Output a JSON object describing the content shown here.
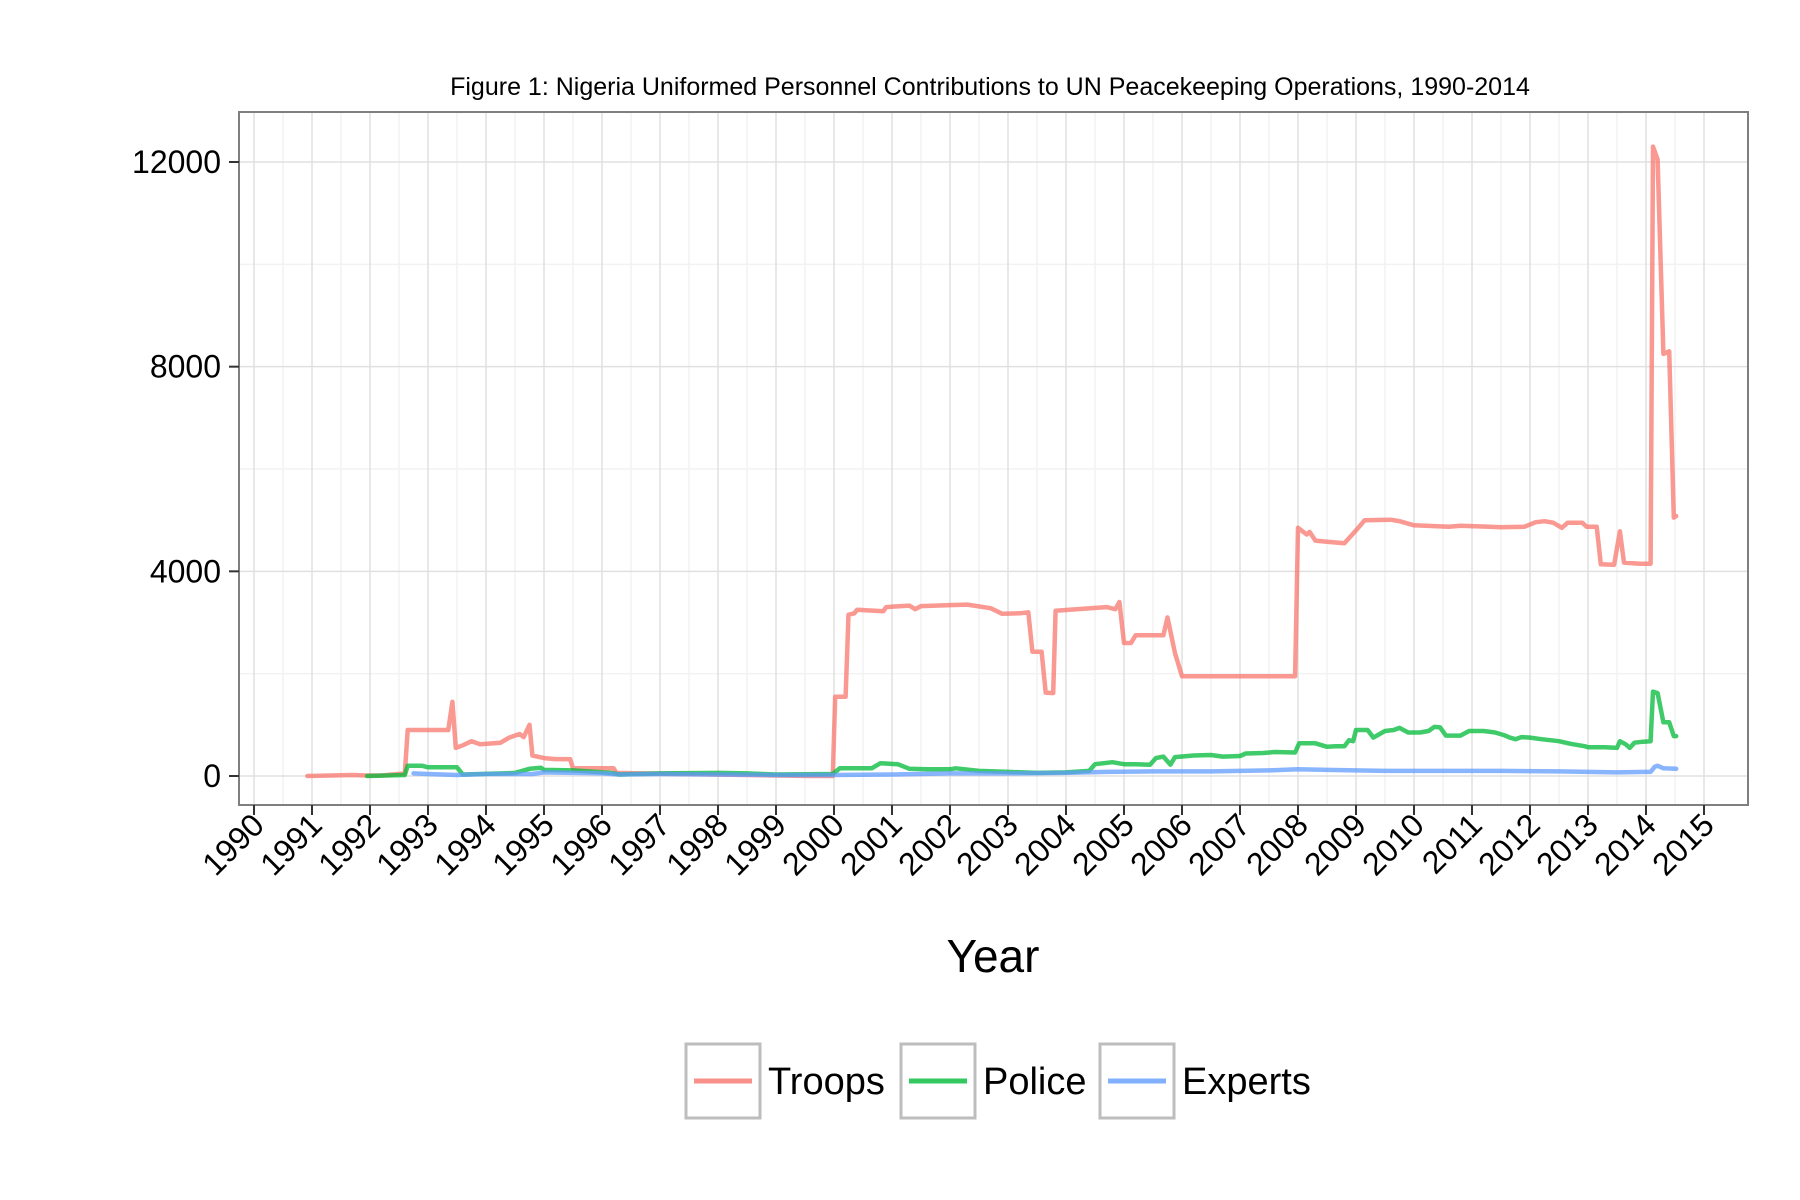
{
  "chart_data": {
    "type": "line",
    "title": "Figure 1: Nigeria Uniformed Personnel Contributions to UN Peacekeeping Operations, 1990-2014",
    "xlabel": "Year",
    "ylabel": "",
    "xlim": [
      1990,
      2015
    ],
    "ylim": [
      -600,
      13000
    ],
    "x_ticks": [
      "1990",
      "1991",
      "1992",
      "1993",
      "1994",
      "1995",
      "1996",
      "1997",
      "1998",
      "1999",
      "2000",
      "2001",
      "2002",
      "2003",
      "2004",
      "2005",
      "2006",
      "2007",
      "2008",
      "2009",
      "2010",
      "2011",
      "2012",
      "2013",
      "2014",
      "2015"
    ],
    "y_ticks": [
      0,
      4000,
      8000,
      12000
    ],
    "grid": true,
    "legend_position": "bottom",
    "series": [
      {
        "name": "Troops",
        "color": "#F8766D",
        "points": [
          [
            1990.92,
            0
          ],
          [
            1991.7,
            20
          ],
          [
            1991.95,
            10
          ],
          [
            1992.2,
            10
          ],
          [
            1992.6,
            50
          ],
          [
            1992.65,
            900
          ],
          [
            1993.35,
            900
          ],
          [
            1993.42,
            1450
          ],
          [
            1993.48,
            550
          ],
          [
            1993.6,
            600
          ],
          [
            1993.75,
            680
          ],
          [
            1993.9,
            620
          ],
          [
            1994.25,
            650
          ],
          [
            1994.4,
            750
          ],
          [
            1994.58,
            820
          ],
          [
            1994.65,
            760
          ],
          [
            1994.75,
            1000
          ],
          [
            1994.8,
            400
          ],
          [
            1995.0,
            350
          ],
          [
            1995.2,
            330
          ],
          [
            1995.45,
            330
          ],
          [
            1995.5,
            150
          ],
          [
            1996.2,
            150
          ],
          [
            1996.25,
            60
          ],
          [
            1999.6,
            0
          ],
          [
            1999.98,
            0
          ],
          [
            2000.02,
            1550
          ],
          [
            2000.2,
            1550
          ],
          [
            2000.25,
            3150
          ],
          [
            2000.35,
            3180
          ],
          [
            2000.4,
            3250
          ],
          [
            2000.85,
            3220
          ],
          [
            2000.9,
            3300
          ],
          [
            2001.3,
            3330
          ],
          [
            2001.4,
            3260
          ],
          [
            2001.5,
            3320
          ],
          [
            2002.0,
            3340
          ],
          [
            2002.3,
            3350
          ],
          [
            2002.7,
            3280
          ],
          [
            2002.9,
            3170
          ],
          [
            2003.2,
            3180
          ],
          [
            2003.35,
            3200
          ],
          [
            2003.42,
            2430
          ],
          [
            2003.58,
            2430
          ],
          [
            2003.65,
            1630
          ],
          [
            2003.78,
            1620
          ],
          [
            2003.82,
            3230
          ],
          [
            2004.3,
            3270
          ],
          [
            2004.7,
            3300
          ],
          [
            2004.85,
            3260
          ],
          [
            2004.92,
            3400
          ],
          [
            2005.0,
            2600
          ],
          [
            2005.12,
            2600
          ],
          [
            2005.2,
            2750
          ],
          [
            2005.68,
            2750
          ],
          [
            2005.75,
            3100
          ],
          [
            2005.88,
            2400
          ],
          [
            2006.0,
            1950
          ],
          [
            2007.95,
            1950
          ],
          [
            2008.0,
            4850
          ],
          [
            2008.15,
            4720
          ],
          [
            2008.2,
            4770
          ],
          [
            2008.3,
            4600
          ],
          [
            2008.5,
            4580
          ],
          [
            2008.8,
            4550
          ],
          [
            2009.0,
            4800
          ],
          [
            2009.15,
            5000
          ],
          [
            2009.6,
            5010
          ],
          [
            2009.75,
            4980
          ],
          [
            2010.0,
            4900
          ],
          [
            2010.4,
            4880
          ],
          [
            2010.6,
            4870
          ],
          [
            2010.8,
            4890
          ],
          [
            2011.3,
            4870
          ],
          [
            2011.5,
            4860
          ],
          [
            2011.9,
            4870
          ],
          [
            2012.1,
            4960
          ],
          [
            2012.25,
            4980
          ],
          [
            2012.4,
            4950
          ],
          [
            2012.55,
            4850
          ],
          [
            2012.65,
            4950
          ],
          [
            2012.9,
            4950
          ],
          [
            2012.98,
            4870
          ],
          [
            2013.15,
            4870
          ],
          [
            2013.22,
            4140
          ],
          [
            2013.45,
            4130
          ],
          [
            2013.55,
            4780
          ],
          [
            2013.62,
            4170
          ],
          [
            2013.9,
            4150
          ],
          [
            2014.0,
            4150
          ],
          [
            2014.08,
            4150
          ],
          [
            2014.12,
            12300
          ],
          [
            2014.2,
            12050
          ],
          [
            2014.3,
            8250
          ],
          [
            2014.4,
            8300
          ],
          [
            2014.48,
            5050
          ],
          [
            2014.52,
            5080
          ]
        ]
      },
      {
        "name": "Police",
        "color": "#00BA38",
        "points": [
          [
            1991.95,
            0
          ],
          [
            1992.6,
            20
          ],
          [
            1992.65,
            200
          ],
          [
            1992.9,
            200
          ],
          [
            1993.0,
            170
          ],
          [
            1993.5,
            170
          ],
          [
            1993.6,
            30
          ],
          [
            1994.3,
            50
          ],
          [
            1994.5,
            60
          ],
          [
            1994.75,
            140
          ],
          [
            1994.95,
            160
          ],
          [
            1995.0,
            120
          ],
          [
            1995.5,
            110
          ],
          [
            1996.15,
            60
          ],
          [
            1996.3,
            30
          ],
          [
            1997.0,
            50
          ],
          [
            1998.0,
            60
          ],
          [
            1998.5,
            50
          ],
          [
            1999.0,
            30
          ],
          [
            1999.98,
            40
          ],
          [
            2000.1,
            150
          ],
          [
            2000.65,
            150
          ],
          [
            2000.8,
            250
          ],
          [
            2001.1,
            230
          ],
          [
            2001.3,
            140
          ],
          [
            2001.6,
            130
          ],
          [
            2002.0,
            130
          ],
          [
            2002.1,
            150
          ],
          [
            2002.5,
            100
          ],
          [
            2003.0,
            80
          ],
          [
            2003.5,
            60
          ],
          [
            2004.0,
            70
          ],
          [
            2004.4,
            100
          ],
          [
            2004.5,
            230
          ],
          [
            2004.8,
            270
          ],
          [
            2005.0,
            230
          ],
          [
            2005.2,
            230
          ],
          [
            2005.45,
            220
          ],
          [
            2005.55,
            350
          ],
          [
            2005.68,
            380
          ],
          [
            2005.8,
            220
          ],
          [
            2005.88,
            370
          ],
          [
            2006.2,
            400
          ],
          [
            2006.5,
            410
          ],
          [
            2006.7,
            380
          ],
          [
            2007.0,
            390
          ],
          [
            2007.1,
            440
          ],
          [
            2007.4,
            450
          ],
          [
            2007.6,
            470
          ],
          [
            2007.95,
            460
          ],
          [
            2008.02,
            640
          ],
          [
            2008.3,
            640
          ],
          [
            2008.5,
            570
          ],
          [
            2008.65,
            580
          ],
          [
            2008.8,
            580
          ],
          [
            2008.88,
            700
          ],
          [
            2008.95,
            680
          ],
          [
            2009.0,
            900
          ],
          [
            2009.2,
            900
          ],
          [
            2009.3,
            750
          ],
          [
            2009.5,
            880
          ],
          [
            2009.65,
            900
          ],
          [
            2009.75,
            940
          ],
          [
            2009.9,
            850
          ],
          [
            2010.1,
            850
          ],
          [
            2010.25,
            880
          ],
          [
            2010.35,
            960
          ],
          [
            2010.45,
            950
          ],
          [
            2010.55,
            790
          ],
          [
            2010.8,
            790
          ],
          [
            2010.95,
            880
          ],
          [
            2011.2,
            880
          ],
          [
            2011.4,
            850
          ],
          [
            2011.55,
            800
          ],
          [
            2011.65,
            750
          ],
          [
            2011.75,
            720
          ],
          [
            2011.85,
            760
          ],
          [
            2012.0,
            750
          ],
          [
            2012.2,
            720
          ],
          [
            2012.5,
            680
          ],
          [
            2012.7,
            630
          ],
          [
            2012.95,
            580
          ],
          [
            2013.0,
            560
          ],
          [
            2013.3,
            560
          ],
          [
            2013.5,
            550
          ],
          [
            2013.55,
            680
          ],
          [
            2013.65,
            620
          ],
          [
            2013.72,
            550
          ],
          [
            2013.8,
            650
          ],
          [
            2013.95,
            670
          ],
          [
            2014.08,
            680
          ],
          [
            2014.12,
            1650
          ],
          [
            2014.2,
            1620
          ],
          [
            2014.3,
            1050
          ],
          [
            2014.4,
            1050
          ],
          [
            2014.48,
            780
          ],
          [
            2014.52,
            780
          ]
        ]
      },
      {
        "name": "Experts",
        "color": "#619CFF",
        "points": [
          [
            1992.75,
            50
          ],
          [
            1993.0,
            40
          ],
          [
            1993.5,
            20
          ],
          [
            1994.0,
            40
          ],
          [
            1994.5,
            40
          ],
          [
            1994.8,
            40
          ],
          [
            1995.0,
            70
          ],
          [
            1995.5,
            60
          ],
          [
            1996.0,
            50
          ],
          [
            1996.3,
            30
          ],
          [
            1997.0,
            40
          ],
          [
            1998.0,
            30
          ],
          [
            1999.0,
            20
          ],
          [
            2000.0,
            20
          ],
          [
            2001.0,
            30
          ],
          [
            2002.0,
            50
          ],
          [
            2003.0,
            50
          ],
          [
            2004.0,
            60
          ],
          [
            2004.7,
            80
          ],
          [
            2005.5,
            90
          ],
          [
            2006.5,
            90
          ],
          [
            2007.5,
            110
          ],
          [
            2008.0,
            130
          ],
          [
            2008.5,
            120
          ],
          [
            2009.5,
            100
          ],
          [
            2010.5,
            100
          ],
          [
            2011.5,
            100
          ],
          [
            2012.5,
            90
          ],
          [
            2013.0,
            80
          ],
          [
            2013.5,
            70
          ],
          [
            2014.0,
            80
          ],
          [
            2014.08,
            80
          ],
          [
            2014.15,
            180
          ],
          [
            2014.2,
            200
          ],
          [
            2014.3,
            150
          ],
          [
            2014.52,
            140
          ]
        ]
      }
    ]
  }
}
